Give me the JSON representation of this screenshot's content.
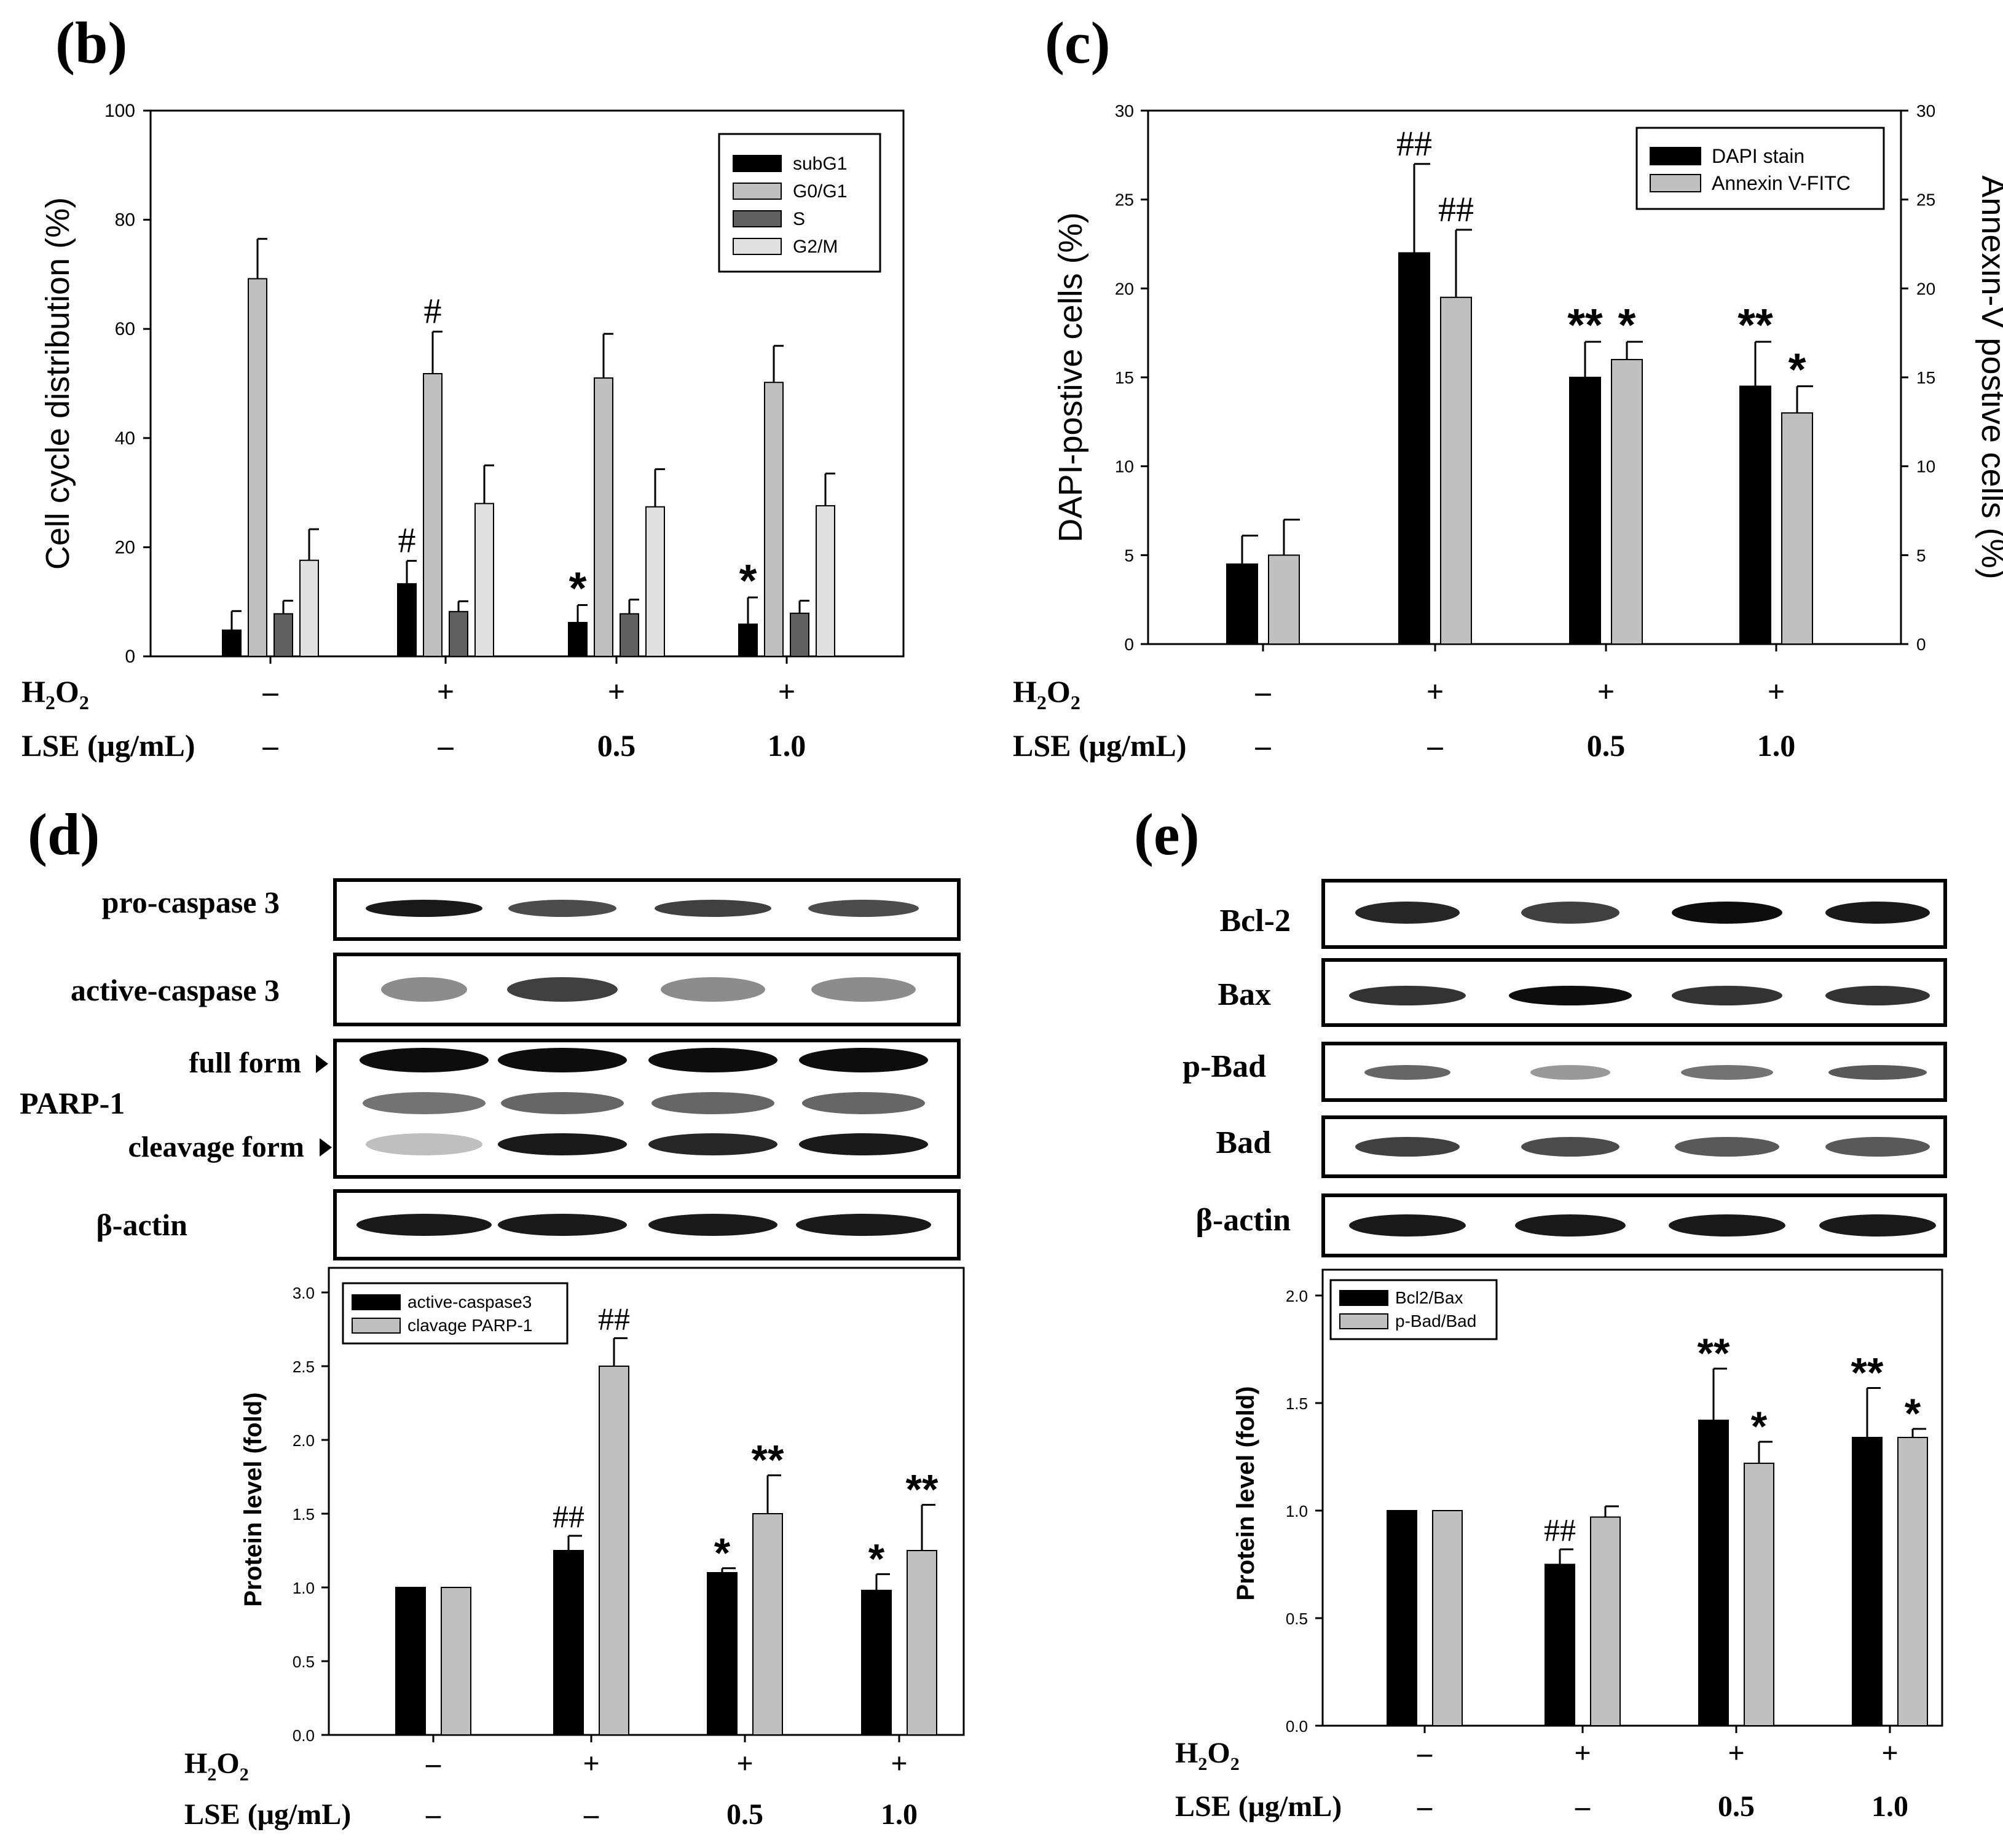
{
  "panels": {
    "b": "(b)",
    "c": "(c)",
    "d": "(d)",
    "e": "(e)"
  },
  "treatments": {
    "h2o2_label": "H",
    "h2o2_sub": "2",
    "h2o2_end": "O",
    "h2o2_sub2": "2",
    "lse_label": "LSE (μg/mL)",
    "h2o2": [
      "–",
      "+",
      "+",
      "+"
    ],
    "lse": [
      "–",
      "–",
      "0.5",
      "1.0"
    ]
  },
  "blot_d": {
    "pro_caspase3": "pro-caspase 3",
    "active_caspase3": "active-caspase 3",
    "full_form": "full form",
    "parp1": "PARP-1",
    "cleavage_form": "cleavage form",
    "beta_actin": "β-actin"
  },
  "blot_e": {
    "bcl2": "Bcl-2",
    "bax": "Bax",
    "pbad": "p-Bad",
    "bad": "Bad",
    "beta_actin": "β-actin"
  },
  "colors": {
    "black": "#000000",
    "gray": "#c0c0c0",
    "darkgray": "#606060",
    "lightgray": "#e0e0e0"
  },
  "chart_data": [
    {
      "id": "b",
      "type": "bar",
      "ylabel": "Cell cycle distribution (%)",
      "ylim": [
        0,
        100
      ],
      "yticks": [
        "0",
        "20",
        "40",
        "60",
        "80",
        "100"
      ],
      "legend": "top-right",
      "series": [
        {
          "name": "subG1",
          "values": [
            4.8,
            13.3,
            6.2,
            5.9
          ],
          "errors": [
            3.5,
            4.2,
            3.2,
            4.9
          ],
          "marks": [
            "",
            "#",
            "*",
            "*"
          ]
        },
        {
          "name": "G0/G1",
          "values": [
            69.2,
            51.8,
            51.0,
            50.2
          ],
          "errors": [
            7.3,
            7.7,
            8.1,
            6.7
          ],
          "marks": [
            "",
            "#",
            "",
            ""
          ]
        },
        {
          "name": "S",
          "values": [
            7.8,
            8.2,
            7.8,
            7.9
          ],
          "errors": [
            2.4,
            1.9,
            2.6,
            2.3
          ],
          "marks": [
            "",
            "",
            "",
            ""
          ]
        },
        {
          "name": "G2/M",
          "values": [
            17.6,
            28.0,
            27.4,
            27.6
          ],
          "errors": [
            5.7,
            7.0,
            6.9,
            5.9
          ],
          "marks": [
            "",
            "",
            "",
            ""
          ]
        }
      ]
    },
    {
      "id": "c",
      "type": "bar",
      "ylabel": "DAPI-postive cells (%)",
      "y2label": "Annexin-V postive cells (%)",
      "ylim": [
        0,
        30
      ],
      "yticks": [
        "0",
        "5",
        "10",
        "15",
        "20",
        "25",
        "30"
      ],
      "legend": "top-right",
      "series": [
        {
          "name": "DAPI stain",
          "values": [
            4.5,
            22.0,
            15.0,
            14.5
          ],
          "errors": [
            1.6,
            5.0,
            2.0,
            2.5
          ],
          "marks": [
            "",
            "##",
            "**",
            "**"
          ]
        },
        {
          "name": "Annexin V-FITC",
          "values": [
            5.0,
            19.5,
            16.0,
            13.0
          ],
          "errors": [
            2.0,
            3.8,
            1.0,
            1.5
          ],
          "marks": [
            "",
            "##",
            "*",
            "*"
          ]
        }
      ]
    },
    {
      "id": "d",
      "type": "bar",
      "ylabel": "Protein level (fold)",
      "ylim": [
        0,
        3.0
      ],
      "yticks": [
        "0.0",
        "0.5",
        "1.0",
        "1.5",
        "2.0",
        "2.5",
        "3.0"
      ],
      "legend": "top-left",
      "series": [
        {
          "name": "active-caspase3",
          "values": [
            1.0,
            1.25,
            1.1,
            0.98
          ],
          "errors": [
            0,
            0.1,
            0.03,
            0.11
          ],
          "marks": [
            "",
            "##",
            "*",
            "*"
          ]
        },
        {
          "name": "clavage PARP-1",
          "values": [
            1.0,
            2.5,
            1.5,
            1.25
          ],
          "errors": [
            0,
            0.19,
            0.26,
            0.31
          ],
          "marks": [
            "",
            "##",
            "**",
            "**"
          ]
        }
      ]
    },
    {
      "id": "e",
      "type": "bar",
      "ylabel": "Protein level (fold)",
      "ylim": [
        0,
        2.0
      ],
      "yticks": [
        "0.0",
        "0.5",
        "1.0",
        "1.5",
        "2.0"
      ],
      "legend": "top-left",
      "series": [
        {
          "name": "Bcl2/Bax",
          "values": [
            1.0,
            0.75,
            1.42,
            1.34
          ],
          "errors": [
            0,
            0.07,
            0.24,
            0.23
          ],
          "marks": [
            "",
            "##",
            "**",
            "**"
          ]
        },
        {
          "name": "p-Bad/Bad",
          "values": [
            1.0,
            0.97,
            1.22,
            1.34
          ],
          "errors": [
            0,
            0.05,
            0.1,
            0.04
          ],
          "marks": [
            "",
            "",
            "*",
            "*"
          ]
        }
      ]
    }
  ]
}
